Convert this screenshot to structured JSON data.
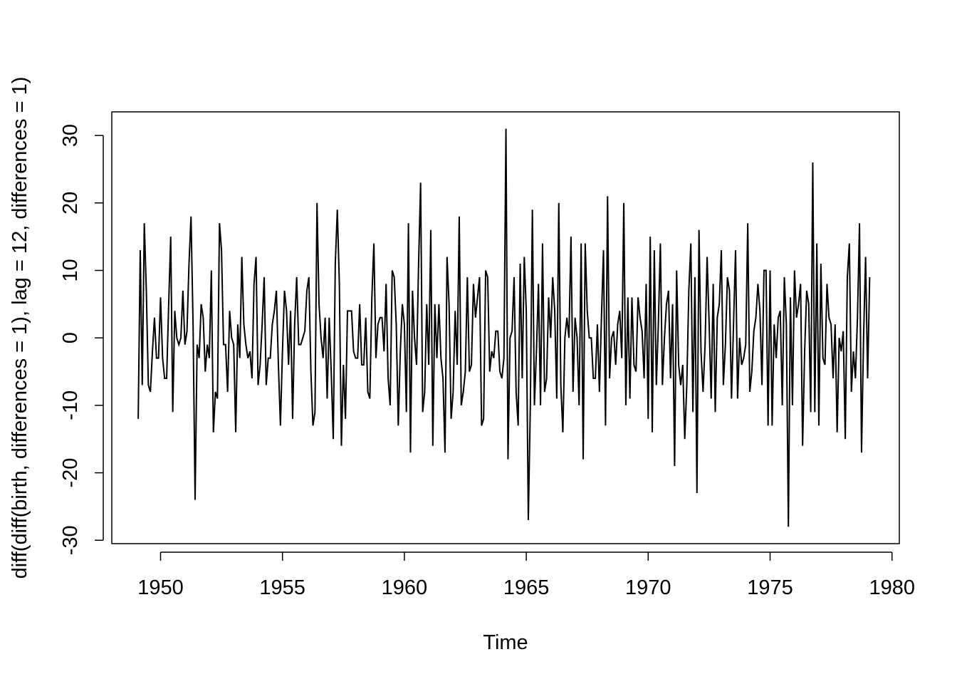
{
  "chart_data": {
    "type": "line",
    "title": "",
    "xlabel": "Time",
    "ylabel": "diff(diff(birth, differences = 1), lag = 12, differences = 1)",
    "xlim": [
      1948,
      1980.3
    ],
    "ylim": [
      -30.5,
      33.5
    ],
    "xticks": [
      1950,
      1955,
      1960,
      1965,
      1970,
      1975,
      1980
    ],
    "yticks": [
      -30,
      -20,
      -10,
      0,
      10,
      20,
      30
    ],
    "grid": false,
    "line_color": "#000000",
    "start": 1949.0833,
    "frequency": 12,
    "series": [
      {
        "values": [
          -12,
          13,
          -7,
          17,
          7,
          -7,
          -8,
          -2,
          3,
          -3,
          -3,
          6,
          -3,
          -6,
          -6,
          5,
          15,
          -11,
          4,
          0,
          -1,
          0,
          7,
          -1,
          1,
          11,
          18,
          2,
          -24,
          -1,
          -3,
          5,
          3,
          -5,
          -1,
          -3,
          10,
          -14,
          -8,
          -9,
          17,
          13,
          -1,
          -1,
          -8,
          4,
          0,
          -1,
          -14,
          2,
          -3,
          12,
          2,
          -1,
          -3,
          -2,
          -6,
          8,
          12,
          -7,
          -4,
          2,
          9,
          -7,
          -3,
          -3,
          2,
          4,
          7,
          -4,
          -13,
          -2,
          7,
          4,
          -4,
          4,
          -12,
          2,
          9,
          -1,
          -1,
          0,
          1,
          7,
          9,
          -5,
          -13,
          -11,
          20,
          5,
          0,
          -3,
          3,
          -9,
          3,
          -5,
          -15,
          11,
          19,
          8,
          -16,
          -4,
          -12,
          4,
          4,
          4,
          -2,
          -3,
          -3,
          5,
          -4,
          -4,
          3,
          -8,
          -9,
          6,
          14,
          -3,
          2,
          3,
          3,
          -2,
          8,
          -6,
          -10,
          10,
          9,
          2,
          -13,
          -2,
          5,
          2,
          -11,
          17,
          -17,
          7,
          0,
          -4,
          11,
          23,
          -11,
          -8,
          5,
          -4,
          16,
          -16,
          5,
          -3,
          5,
          -3,
          -6,
          -17,
          12,
          5,
          -12,
          -8,
          4,
          -4,
          18,
          -10,
          -8,
          -5,
          9,
          -5,
          -4,
          8,
          3,
          6,
          9,
          -13,
          -12,
          10,
          9,
          -5,
          -2,
          -3,
          1,
          1,
          -5,
          -6,
          -3,
          31,
          -18,
          0,
          1,
          9,
          -8,
          -13,
          11,
          -6,
          12,
          4,
          -27,
          -10,
          19,
          -10,
          -2,
          8,
          -10,
          14,
          -8,
          -6,
          6,
          0,
          9,
          4,
          -9,
          20,
          -7,
          -14,
          0,
          3,
          0,
          15,
          -8,
          3,
          0,
          -10,
          14,
          -18,
          14,
          4,
          0,
          0,
          -6,
          -6,
          2,
          -8,
          3,
          13,
          -13,
          21,
          -6,
          0,
          1,
          -4,
          2,
          4,
          -3,
          20,
          -10,
          6,
          -9,
          6,
          -4,
          -5,
          6,
          3,
          1,
          -6,
          8,
          -12,
          15,
          -14,
          13,
          -7,
          2,
          14,
          -7,
          0,
          5,
          7,
          -6,
          5,
          -19,
          10,
          -4,
          -7,
          -4,
          -15,
          -7,
          7,
          14,
          -11,
          9,
          -23,
          16,
          -2,
          -8,
          -1,
          12,
          2,
          -9,
          8,
          -11,
          3,
          5,
          13,
          -7,
          -1,
          9,
          7,
          -9,
          2,
          13,
          -9,
          0,
          -4,
          -3,
          -1,
          17,
          -8,
          -5,
          1,
          3,
          8,
          4,
          -7,
          10,
          10,
          -13,
          10,
          -13,
          2,
          -3,
          3,
          4,
          -10,
          9,
          2,
          -28,
          6,
          -10,
          10,
          3,
          5,
          8,
          -16,
          -2,
          7,
          5,
          -11,
          26,
          -11,
          14,
          -13,
          11,
          -3,
          -4,
          8,
          3,
          2,
          -6,
          2,
          -14,
          0,
          -2,
          1,
          -15,
          9,
          14,
          -8,
          -2,
          -6,
          3,
          17,
          -17,
          0,
          12,
          -6,
          9
        ]
      }
    ]
  }
}
